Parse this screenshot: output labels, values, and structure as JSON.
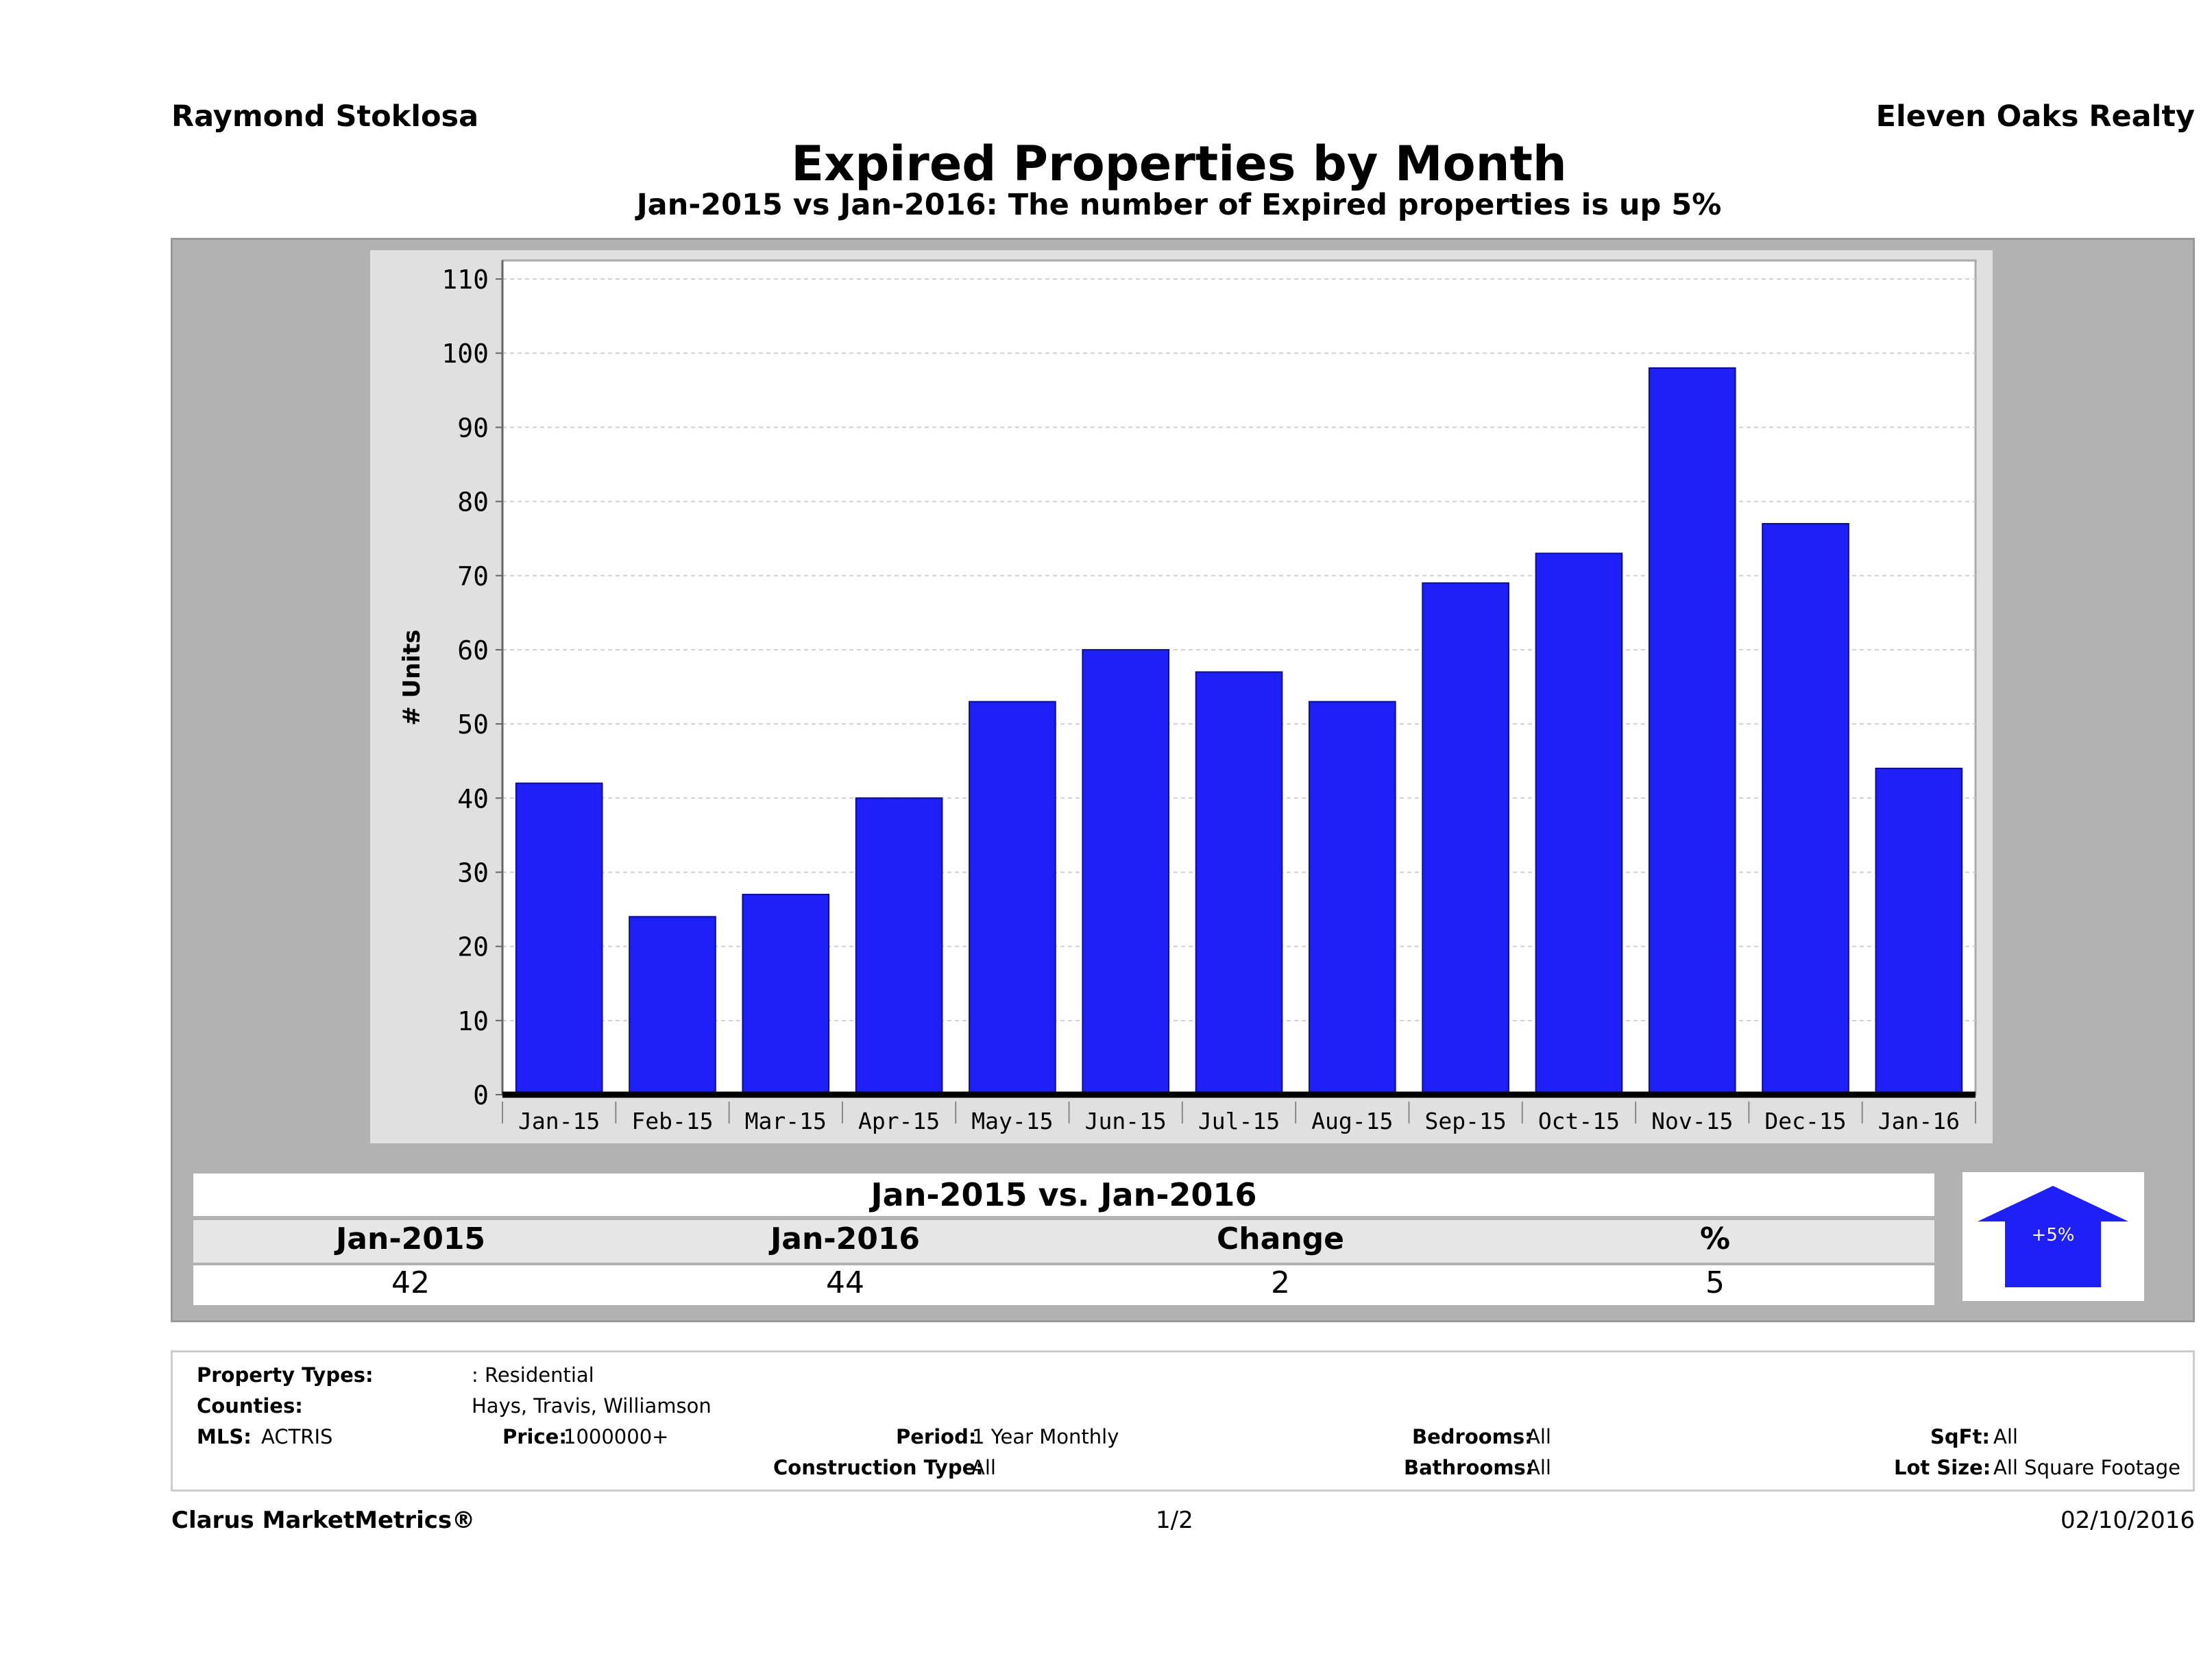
{
  "header": {
    "agent": "Raymond Stoklosa",
    "company": "Eleven Oaks Realty",
    "title": "Expired Properties by Month",
    "subtitle": "Jan-2015 vs Jan-2016: The number of Expired  properties is up 5%"
  },
  "chart_data": {
    "type": "bar",
    "categories": [
      "Jan-15",
      "Feb-15",
      "Mar-15",
      "Apr-15",
      "May-15",
      "Jun-15",
      "Jul-15",
      "Aug-15",
      "Sep-15",
      "Oct-15",
      "Nov-15",
      "Dec-15",
      "Jan-16"
    ],
    "values": [
      42,
      24,
      27,
      40,
      53,
      60,
      57,
      53,
      69,
      73,
      98,
      77,
      44
    ],
    "ylabel": "# Units",
    "ylim": [
      0,
      110
    ],
    "yticks": [
      0,
      10,
      20,
      30,
      40,
      50,
      60,
      70,
      80,
      90,
      100,
      110
    ],
    "bar_color": "#1f1ff7",
    "grid": true
  },
  "comparison": {
    "title": "Jan-2015 vs. Jan-2016",
    "headers": [
      "Jan-2015",
      "Jan-2016",
      "Change",
      "%"
    ],
    "values": [
      "42",
      "44",
      "2",
      "5"
    ],
    "badge": "+5%",
    "direction": "up",
    "arrow_color": "#1f1ff7"
  },
  "filters": {
    "property_types_label": "Property Types:",
    "property_types_value": ": Residential",
    "counties_label": "Counties:",
    "counties_value": "Hays, Travis, Williamson",
    "mls_label": "MLS:",
    "mls_value": "ACTRIS",
    "price_label": "Price:",
    "price_value": "1000000+",
    "period_label": "Period:",
    "period_value": "1 Year Monthly",
    "construction_label": "Construction Type:",
    "construction_value": "All",
    "bedrooms_label": "Bedrooms:",
    "bedrooms_value": "All",
    "bathrooms_label": "Bathrooms:",
    "bathrooms_value": "All",
    "sqft_label": "SqFt:",
    "sqft_value": "All",
    "lotsize_label": "Lot Size:",
    "lotsize_value": "All Square Footage"
  },
  "footer": {
    "brand": "Clarus MarketMetrics®",
    "page": "1/2",
    "date": "02/10/2016"
  }
}
